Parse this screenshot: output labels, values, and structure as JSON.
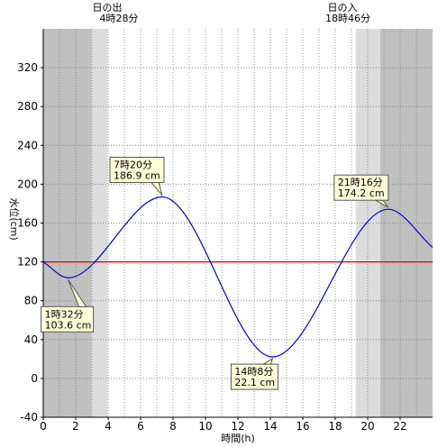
{
  "chart_data": {
    "type": "line",
    "title": "",
    "xlabel": "時間(h)",
    "ylabel": "水位(cm)",
    "xlim": [
      0,
      24
    ],
    "ylim": [
      -40,
      360
    ],
    "x_ticks": [
      0,
      2,
      4,
      6,
      8,
      10,
      12,
      14,
      16,
      18,
      20,
      22
    ],
    "y_ticks": [
      -40,
      0,
      40,
      80,
      120,
      160,
      200,
      240,
      280,
      320
    ],
    "grid": true,
    "reference_line": {
      "y": 120,
      "color": "#e00000"
    },
    "sunrise": {
      "label": "日の出",
      "time": "4時28分",
      "hour": 4.467
    },
    "sunset": {
      "label": "日の入",
      "time": "18時46分",
      "hour": 18.767
    },
    "extremes": [
      {
        "time": "1時32分",
        "value": "103.6 cm",
        "hour": 1.533,
        "level": 103.6
      },
      {
        "time": "7時20分",
        "value": "186.9 cm",
        "hour": 7.333,
        "level": 186.9
      },
      {
        "time": "14時8分",
        "value": "22.1 cm",
        "hour": 14.133,
        "level": 22.1
      },
      {
        "time": "21時16分",
        "value": "174.2 cm",
        "hour": 21.267,
        "level": 174.2
      }
    ],
    "series": [
      {
        "start": [
          0,
          120
        ],
        "end": [
          24,
          135
        ],
        "color": "#0000cc"
      }
    ],
    "colors": {
      "night": "#c0c0c0",
      "twilight": "#dcdcdc",
      "day": "#ffffff",
      "tide_line": "#0000cc",
      "callout_fill": "#ffffd8"
    }
  }
}
